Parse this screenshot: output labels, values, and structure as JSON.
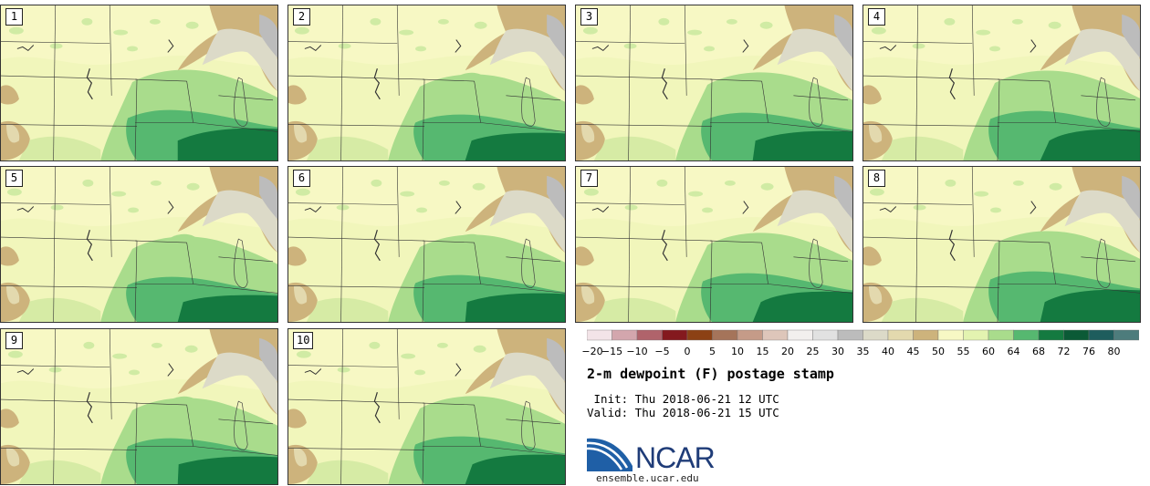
{
  "panels": [
    {
      "label": "1"
    },
    {
      "label": "2"
    },
    {
      "label": "3"
    },
    {
      "label": "4"
    },
    {
      "label": "5"
    },
    {
      "label": "6"
    },
    {
      "label": "7"
    },
    {
      "label": "8"
    },
    {
      "label": "9"
    },
    {
      "label": "10"
    }
  ],
  "colorbar": {
    "tick_labels": [
      "−20",
      "−15",
      "−10",
      "−5",
      "0",
      "5",
      "10",
      "15",
      "20",
      "25",
      "30",
      "35",
      "40",
      "45",
      "50",
      "55",
      "60",
      "64",
      "68",
      "72",
      "76",
      "80"
    ],
    "colors": [
      "#f3e4e8",
      "#d3a6ad",
      "#b0636b",
      "#84191e",
      "#8c4114",
      "#a5745a",
      "#c59b88",
      "#dec6ba",
      "#f2efee",
      "#e1e1e1",
      "#bcbcbc",
      "#dcdac8",
      "#e3d9ae",
      "#cdb37c",
      "#f7f8c4",
      "#e3f3b0",
      "#a9dc8c",
      "#56b870",
      "#147a40",
      "#0b5a36",
      "#1e5d5d",
      "#4d7c7c"
    ]
  },
  "title": "2-m dewpoint (F) postage stamp",
  "init": " Init: Thu 2018-06-21 12 UTC",
  "valid": "Valid: Thu 2018-06-21 15 UTC",
  "logo_text": "NCAR",
  "logo_url": "ensemble.ucar.edu"
}
